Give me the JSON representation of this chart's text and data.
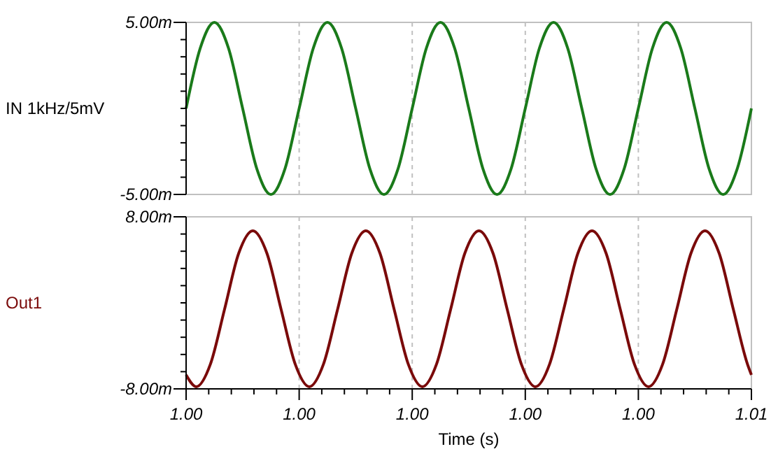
{
  "chart_data": [
    {
      "type": "line",
      "ylabel": "IN 1kHz/5mV",
      "tick_labels": "y",
      "grid": "x",
      "xlim": [
        1.0,
        1.005
      ],
      "xticks": [
        {
          "value": 1.0,
          "label": null
        },
        {
          "value": 1.001,
          "label": null
        },
        {
          "value": 1.002,
          "label": null
        },
        {
          "value": 1.003,
          "label": null
        },
        {
          "value": 1.004,
          "label": null
        },
        {
          "value": 1.005,
          "label": null
        }
      ],
      "ylim": [
        -5,
        5
      ],
      "yticks": [
        {
          "value": -5,
          "label": "-5.00m"
        },
        {
          "value": -4,
          "label": null
        },
        {
          "value": -3,
          "label": null
        },
        {
          "value": -2,
          "label": null
        },
        {
          "value": -1,
          "label": null
        },
        {
          "value": 0,
          "label": null
        },
        {
          "value": 1,
          "label": null
        },
        {
          "value": 2,
          "label": null
        },
        {
          "value": 3,
          "label": null
        },
        {
          "value": 4,
          "label": null
        },
        {
          "value": 5,
          "label": "5.00m"
        }
      ],
      "series": [
        {
          "color": "#1a7a1a",
          "x": [
            1.0,
            1.000125,
            1.00025,
            1.000375,
            1.0005,
            1.000625,
            1.00075,
            1.000875,
            1.001,
            1.001125,
            1.00125,
            1.001375,
            1.0015,
            1.001625,
            1.00175,
            1.001875,
            1.002,
            1.002125,
            1.00225,
            1.002375,
            1.0025,
            1.002625,
            1.00275,
            1.002875,
            1.003,
            1.003125,
            1.00325,
            1.003375,
            1.0035,
            1.003625,
            1.00375,
            1.003875,
            1.004,
            1.004125,
            1.00425,
            1.004375,
            1.0045,
            1.004625,
            1.00475,
            1.004875,
            1.005
          ],
          "values": [
            0,
            3.5,
            5,
            3.5,
            0,
            -3.5,
            -5,
            -3.5,
            0,
            3.5,
            5,
            3.5,
            0,
            -3.5,
            -5,
            -3.5,
            0,
            3.5,
            5,
            3.5,
            0,
            -3.5,
            -5,
            -3.5,
            0,
            3.5,
            5,
            3.5,
            0,
            -3.5,
            -5,
            -3.5,
            0,
            3.5,
            5,
            3.5,
            0,
            -3.5,
            -5,
            -3.5,
            0
          ]
        }
      ]
    },
    {
      "type": "line",
      "ylabel": "Out1",
      "xlabel": "Time (s)",
      "grid": "x",
      "xlim": [
        1.0,
        1.005
      ],
      "xticks": [
        {
          "value": 1.0,
          "label": "1.00"
        },
        {
          "value": 1.0002,
          "label": null
        },
        {
          "value": 1.0004,
          "label": null
        },
        {
          "value": 1.0006,
          "label": null
        },
        {
          "value": 1.0008,
          "label": null
        },
        {
          "value": 1.001,
          "label": "1.00"
        },
        {
          "value": 1.0012,
          "label": null
        },
        {
          "value": 1.0014,
          "label": null
        },
        {
          "value": 1.0016,
          "label": null
        },
        {
          "value": 1.0018,
          "label": null
        },
        {
          "value": 1.002,
          "label": "1.00"
        },
        {
          "value": 1.0022,
          "label": null
        },
        {
          "value": 1.0024,
          "label": null
        },
        {
          "value": 1.0026,
          "label": null
        },
        {
          "value": 1.0028,
          "label": null
        },
        {
          "value": 1.003,
          "label": "1.00"
        },
        {
          "value": 1.0032,
          "label": null
        },
        {
          "value": 1.0034,
          "label": null
        },
        {
          "value": 1.0036,
          "label": null
        },
        {
          "value": 1.0038,
          "label": null
        },
        {
          "value": 1.004,
          "label": "1.00"
        },
        {
          "value": 1.0042,
          "label": null
        },
        {
          "value": 1.0044,
          "label": null
        },
        {
          "value": 1.0046,
          "label": null
        },
        {
          "value": 1.0048,
          "label": null
        },
        {
          "value": 1.005,
          "label": "1.01"
        }
      ],
      "ylim": [
        -8,
        8
      ],
      "yticks": [
        {
          "value": -8,
          "label": "-8.00m"
        },
        {
          "value": -6.4,
          "label": null
        },
        {
          "value": -4.8,
          "label": null
        },
        {
          "value": -3.2,
          "label": null
        },
        {
          "value": -1.6,
          "label": null
        },
        {
          "value": 0,
          "label": null
        },
        {
          "value": 1.6,
          "label": null
        },
        {
          "value": 3.2,
          "label": null
        },
        {
          "value": 4.8,
          "label": null
        },
        {
          "value": 6.4,
          "label": null
        },
        {
          "value": 8,
          "label": "8.00m"
        }
      ],
      "series": [
        {
          "color": "#7a0a0a",
          "x": [
            1.0,
            1.00009,
            1.000215,
            1.00034,
            1.000465,
            1.00059,
            1.000715,
            1.00084,
            1.000965,
            1.00109,
            1.001215,
            1.00134,
            1.001465,
            1.00159,
            1.001715,
            1.00184,
            1.001965,
            1.00209,
            1.002215,
            1.00234,
            1.002465,
            1.00259,
            1.002715,
            1.00284,
            1.002965,
            1.00309,
            1.003215,
            1.00334,
            1.003465,
            1.00359,
            1.003715,
            1.00384,
            1.003965,
            1.00409,
            1.004215,
            1.00434,
            1.004465,
            1.00459,
            1.004715,
            1.00484,
            1.004965,
            1.005
          ],
          "values": [
            -6.7,
            -7.8,
            -5.7,
            -0.6,
            4.6,
            6.7,
            4.6,
            -0.6,
            -5.7,
            -7.8,
            -5.7,
            -0.6,
            4.6,
            6.7,
            4.6,
            -0.6,
            -5.7,
            -7.8,
            -5.7,
            -0.6,
            4.6,
            6.7,
            4.6,
            -0.6,
            -5.7,
            -7.8,
            -5.7,
            -0.6,
            4.6,
            6.7,
            4.6,
            -0.6,
            -5.7,
            -7.8,
            -5.7,
            -0.6,
            4.6,
            6.7,
            4.6,
            -0.6,
            -5.7,
            -6.7
          ]
        }
      ]
    }
  ]
}
